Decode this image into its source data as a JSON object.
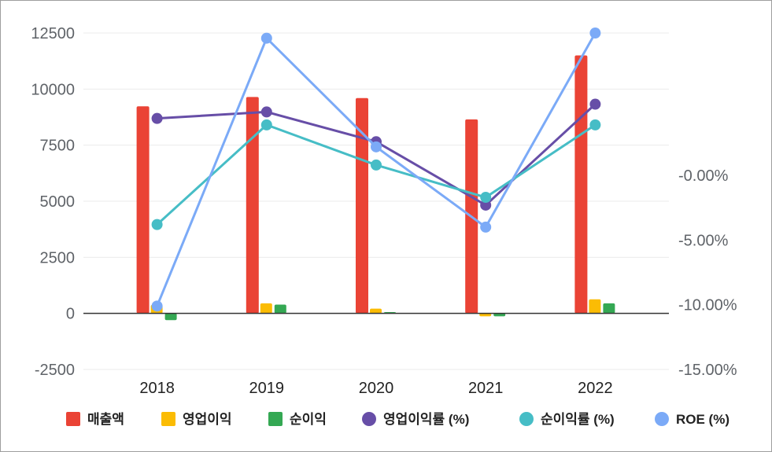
{
  "chart_data": {
    "type": "bar+line",
    "categories": [
      "2018",
      "2019",
      "2020",
      "2021",
      "2022"
    ],
    "left_axis": {
      "ylim": [
        -2500,
        12500
      ],
      "ticks": [
        "-2500",
        "0",
        "2500",
        "5000",
        "7500",
        "10000",
        "12500"
      ],
      "tick_values": [
        -2500,
        0,
        2500,
        5000,
        7500,
        10000,
        12500
      ]
    },
    "right_axis": {
      "ylim": [
        -15,
        11
      ],
      "ticks": [
        "-15.00%",
        "-10.00%",
        "-5.00%",
        "-0.00%"
      ],
      "tick_values": [
        -15,
        -10,
        -5,
        0
      ]
    },
    "bar_series": [
      {
        "name": "매출액",
        "color": "#ea4335",
        "values": [
          9230,
          9650,
          9600,
          8650,
          11500
        ]
      },
      {
        "name": "영업이익",
        "color": "#fbbc04",
        "values": [
          380,
          450,
          210,
          -130,
          630
        ]
      },
      {
        "name": "순이익",
        "color": "#34a853",
        "values": [
          -300,
          390,
          60,
          -130,
          450
        ]
      }
    ],
    "line_series": [
      {
        "name": "영업이익률 (%)",
        "color": "#674ea7",
        "values": [
          4.4,
          4.9,
          2.6,
          -2.3,
          5.5
        ]
      },
      {
        "name": "순이익률 (%)",
        "color": "#46bdc6",
        "values": [
          -3.8,
          3.9,
          0.8,
          -1.7,
          3.9
        ]
      },
      {
        "name": "ROE (%)",
        "color": "#7baaf7",
        "values": [
          -10.1,
          10.6,
          2.2,
          -4.0,
          11.0
        ]
      }
    ],
    "legend_position": "bottom",
    "grid": true
  }
}
